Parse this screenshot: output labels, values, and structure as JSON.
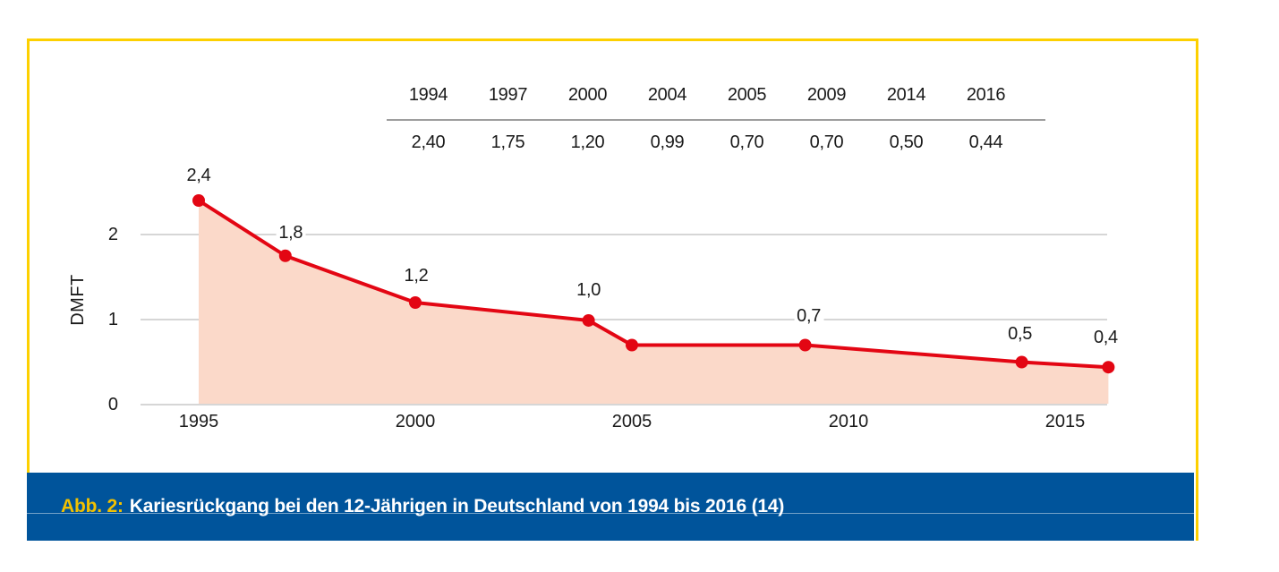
{
  "figure": {
    "caption": {
      "prefix": "Abb. 2:",
      "text": "Kariesrückgang bei den 12-Jährigen in Deutschland von 1994 bis 2016 (14)"
    },
    "colors": {
      "frame_yellow": "#fdd000",
      "caption_bar_blue": "#00549b",
      "caption_prefix_yellow": "#f2c100",
      "line_red": "#e30613",
      "area_fill": "#fbd9c9",
      "gridline_gray": "#c8c8c8",
      "table_rule_gray": "#9e9e9e"
    }
  },
  "table": {
    "years": [
      "1994",
      "1997",
      "2000",
      "2004",
      "2005",
      "2009",
      "2014",
      "2016"
    ],
    "values": [
      "2,40",
      "1,75",
      "1,20",
      "0,99",
      "0,70",
      "0,70",
      "0,50",
      "0,44"
    ]
  },
  "chart_data": {
    "type": "area",
    "title": "",
    "xlabel": "",
    "ylabel": "DMFT",
    "x": [
      1994,
      1997,
      2000,
      2004,
      2005,
      2009,
      2014,
      2016
    ],
    "values": [
      2.4,
      1.75,
      1.2,
      0.99,
      0.7,
      0.7,
      0.5,
      0.44
    ],
    "point_labels": [
      "2,4",
      "1,8",
      "1,2",
      "1,0",
      "",
      "0,7",
      "0,5",
      "0,4"
    ],
    "x_ticks": [
      1995,
      2000,
      2005,
      2010,
      2015
    ],
    "x_tick_labels": [
      "1995",
      "2000",
      "2005",
      "2010",
      "2015"
    ],
    "y_ticks": [
      0,
      1,
      2
    ],
    "y_tick_labels": [
      "0",
      "1",
      "2"
    ],
    "xlim": [
      1995,
      2016
    ],
    "ylim": [
      0,
      2.5
    ],
    "grid": "horizontal",
    "x_clamp_min": 1995,
    "legend": "none"
  }
}
